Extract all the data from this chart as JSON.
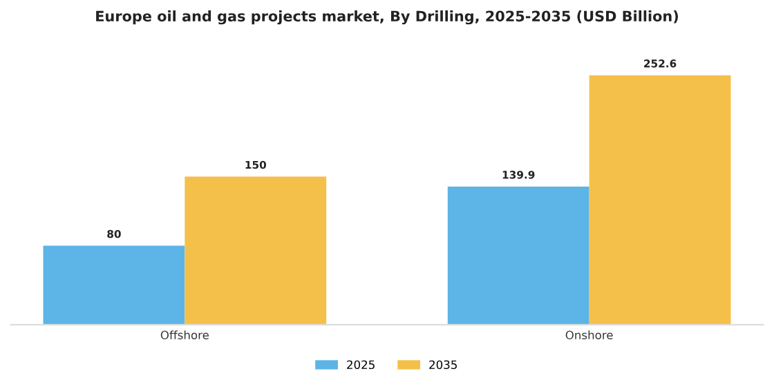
{
  "chart_data": {
    "type": "bar",
    "title": "Europe oil and gas projects market, By Drilling, 2025-2035 (USD Billion)",
    "categories": [
      "Offshore",
      "Onshore"
    ],
    "series": [
      {
        "name": "2025",
        "color": "#5db4e6",
        "values": [
          80,
          139.9
        ]
      },
      {
        "name": "2035",
        "color": "#f5c04a",
        "values": [
          150,
          252.6
        ]
      }
    ],
    "data_labels": true,
    "legend": "bottom",
    "grid": false
  }
}
